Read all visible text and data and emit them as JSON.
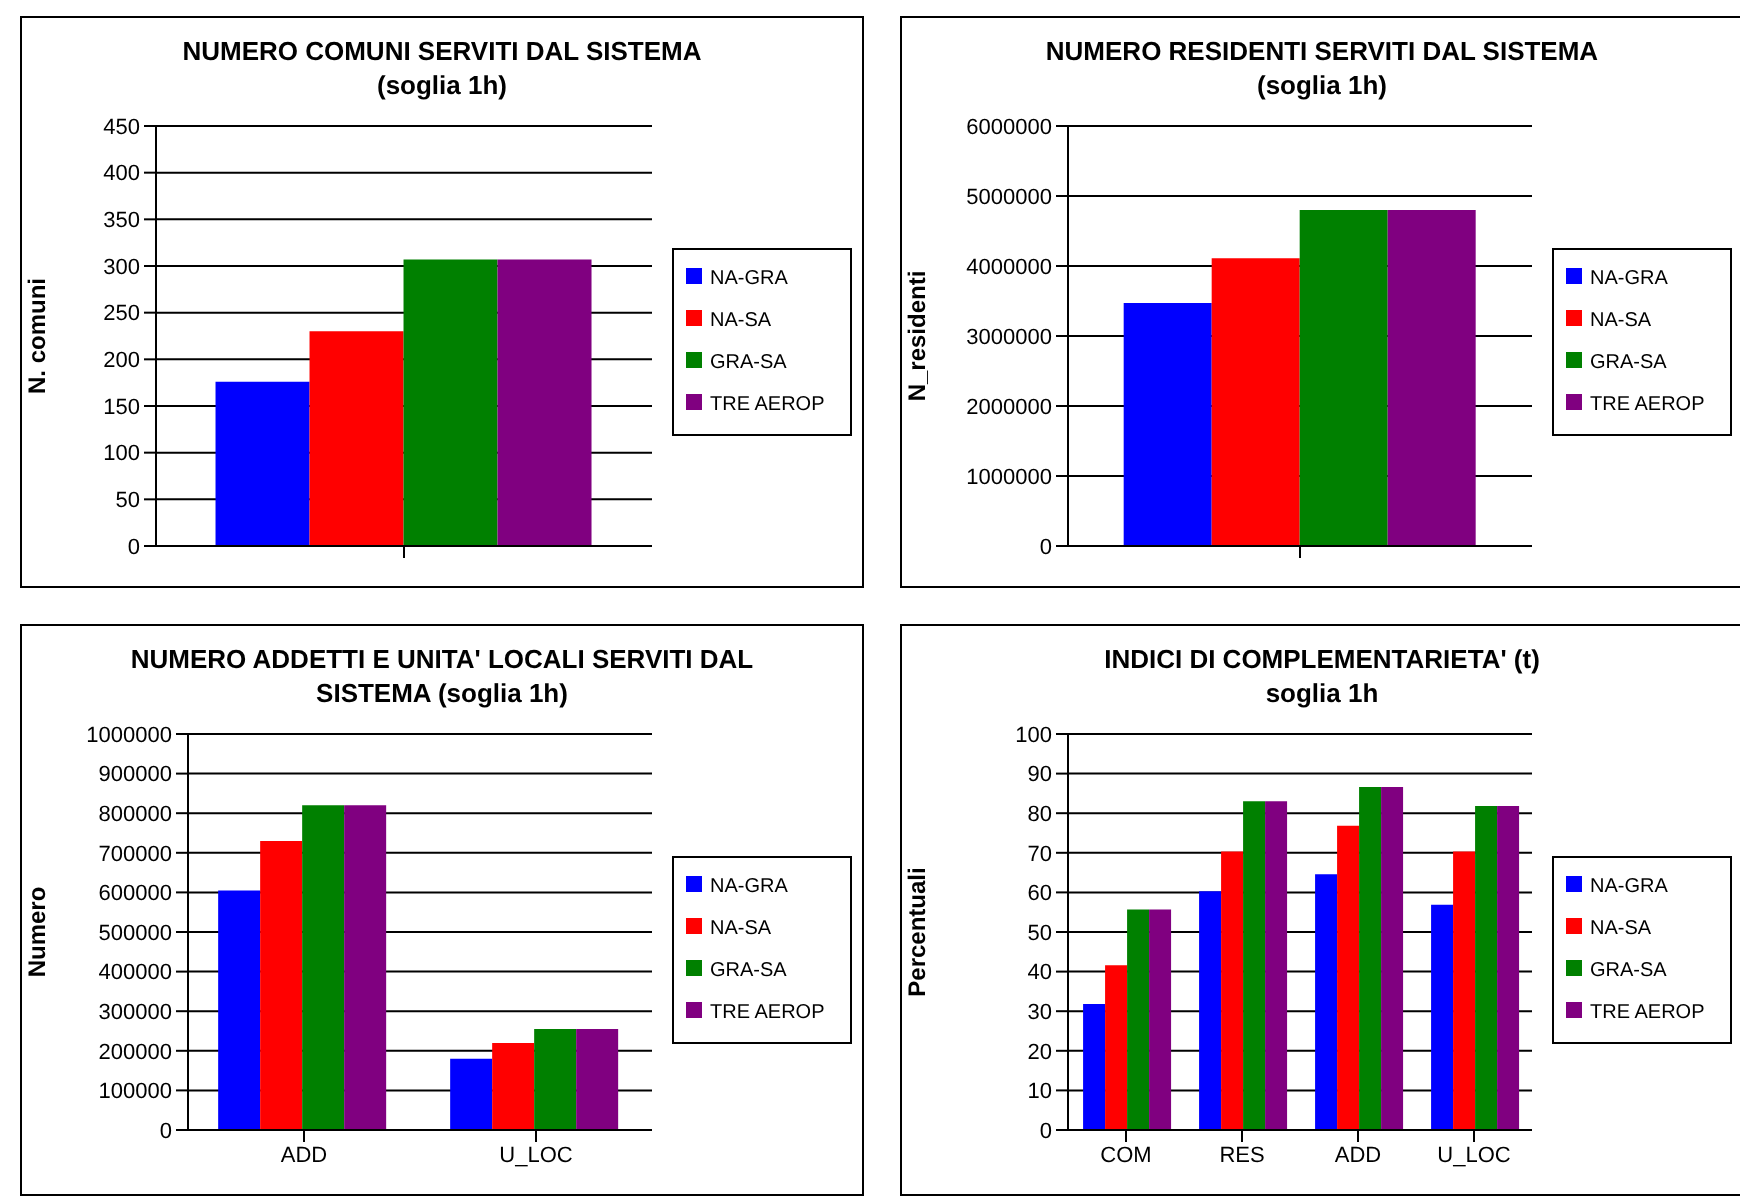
{
  "chart_data": [
    {
      "type": "bar",
      "title": "NUMERO COMUNI SERVITI DAL SISTEMA",
      "subtitle": "(soglia 1h)",
      "ylabel": "N. comuni",
      "categories": [
        null
      ],
      "series": [
        {
          "name": "NA-GRA",
          "color": "#0000ff",
          "values": [
            176
          ]
        },
        {
          "name": "NA-SA",
          "color": "#ff0000",
          "values": [
            230
          ]
        },
        {
          "name": "GRA-SA",
          "color": "#008000",
          "values": [
            307
          ]
        },
        {
          "name": "TRE AEROP",
          "color": "#800080",
          "values": [
            307
          ]
        }
      ],
      "ylim": [
        0,
        450
      ],
      "yticks": [
        0,
        50,
        100,
        150,
        200,
        250,
        300,
        350,
        400,
        450
      ],
      "grid": "y",
      "legend": "right"
    },
    {
      "type": "bar",
      "title": "NUMERO RESIDENTI SERVITI DAL SISTEMA",
      "subtitle": "(soglia 1h)",
      "ylabel": "N_residenti",
      "categories": [
        null
      ],
      "series": [
        {
          "name": "NA-GRA",
          "color": "#0000ff",
          "values": [
            3470000
          ]
        },
        {
          "name": "NA-SA",
          "color": "#ff0000",
          "values": [
            4110000
          ]
        },
        {
          "name": "GRA-SA",
          "color": "#008000",
          "values": [
            4800000
          ]
        },
        {
          "name": "TRE AEROP",
          "color": "#800080",
          "values": [
            4800000
          ]
        }
      ],
      "ylim": [
        0,
        6000000
      ],
      "yticks": [
        0,
        1000000,
        2000000,
        3000000,
        4000000,
        5000000,
        6000000
      ],
      "grid": "y",
      "legend": "right"
    },
    {
      "type": "bar",
      "title": "NUMERO ADDETTI E UNITA' LOCALI SERVITI DAL SISTEMA (soglia 1h)",
      "ylabel": "Numero",
      "categories": [
        "ADD",
        "U_LOC"
      ],
      "series": [
        {
          "name": "NA-GRA",
          "color": "#0000ff",
          "values": [
            605000,
            180000
          ]
        },
        {
          "name": "NA-SA",
          "color": "#ff0000",
          "values": [
            730000,
            220000
          ]
        },
        {
          "name": "GRA-SA",
          "color": "#008000",
          "values": [
            820000,
            255000
          ]
        },
        {
          "name": "TRE AEROP",
          "color": "#800080",
          "values": [
            820000,
            255000
          ]
        }
      ],
      "ylim": [
        0,
        1000000
      ],
      "yticks": [
        0,
        100000,
        200000,
        300000,
        400000,
        500000,
        600000,
        700000,
        800000,
        900000,
        1000000
      ],
      "grid": "y",
      "legend": "right"
    },
    {
      "type": "bar",
      "title": "INDICI DI COMPLEMENTARIETA' (t)",
      "subtitle": "soglia 1h",
      "ylabel": "Percentuali",
      "categories": [
        "COM",
        "RES",
        "ADD",
        "U_LOC"
      ],
      "series": [
        {
          "name": "NA-GRA",
          "color": "#0000ff",
          "values": [
            31.8,
            60.3,
            64.6,
            56.9
          ]
        },
        {
          "name": "NA-SA",
          "color": "#ff0000",
          "values": [
            41.6,
            70.3,
            76.8,
            70.3
          ]
        },
        {
          "name": "GRA-SA",
          "color": "#008000",
          "values": [
            55.7,
            83.0,
            86.6,
            81.8
          ]
        },
        {
          "name": "TRE AEROP",
          "color": "#800080",
          "values": [
            55.7,
            83.0,
            86.6,
            81.8
          ]
        }
      ],
      "ylim": [
        0,
        100
      ],
      "yticks": [
        0,
        10,
        20,
        30,
        40,
        50,
        60,
        70,
        80,
        90,
        100
      ],
      "grid": "y",
      "legend": "right"
    }
  ]
}
